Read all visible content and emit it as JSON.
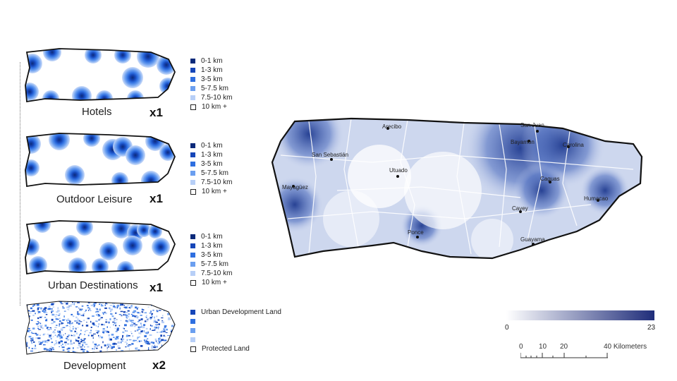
{
  "panels": [
    {
      "label": "Hotels",
      "multiplier": "x1"
    },
    {
      "label": "Outdoor Leisure",
      "multiplier": "x1"
    },
    {
      "label": "Urban Destinations",
      "multiplier": "x1"
    },
    {
      "label": "Development",
      "multiplier": "x2"
    }
  ],
  "distance_legend": [
    {
      "label": "0-1 km",
      "color": "#0b2a7a"
    },
    {
      "label": "1-3 km",
      "color": "#1646b8"
    },
    {
      "label": "3-5 km",
      "color": "#2f6fe0"
    },
    {
      "label": "5-7.5 km",
      "color": "#6b9ff0"
    },
    {
      "label": "7.5-10 km",
      "color": "#b7cff7"
    },
    {
      "label": "10 km +",
      "color": "#ffffff"
    }
  ],
  "development_legend": [
    {
      "label": "Urban Development Land",
      "color": "#1646b8"
    },
    {
      "label": "",
      "color": "#2f6fe0"
    },
    {
      "label": "",
      "color": "#6b9ff0"
    },
    {
      "label": "",
      "color": "#b7cff7"
    },
    {
      "label": "Protected Land",
      "color": "#ffffff"
    }
  ],
  "cities": [
    "San Juan",
    "Bayamón",
    "Carolina",
    "San Sebastián",
    "Utuado",
    "Mayagüez",
    "Caguas",
    "Cayey",
    "Humacao",
    "Ponce",
    "Guayama",
    "Arecibo"
  ],
  "colorbar": {
    "min": "0",
    "max": "23",
    "low_color": "#ffffff",
    "high_color": "#1f2d7a"
  },
  "scale": {
    "ticks": [
      "0",
      "10",
      "20",
      "40 Kilometers"
    ]
  }
}
